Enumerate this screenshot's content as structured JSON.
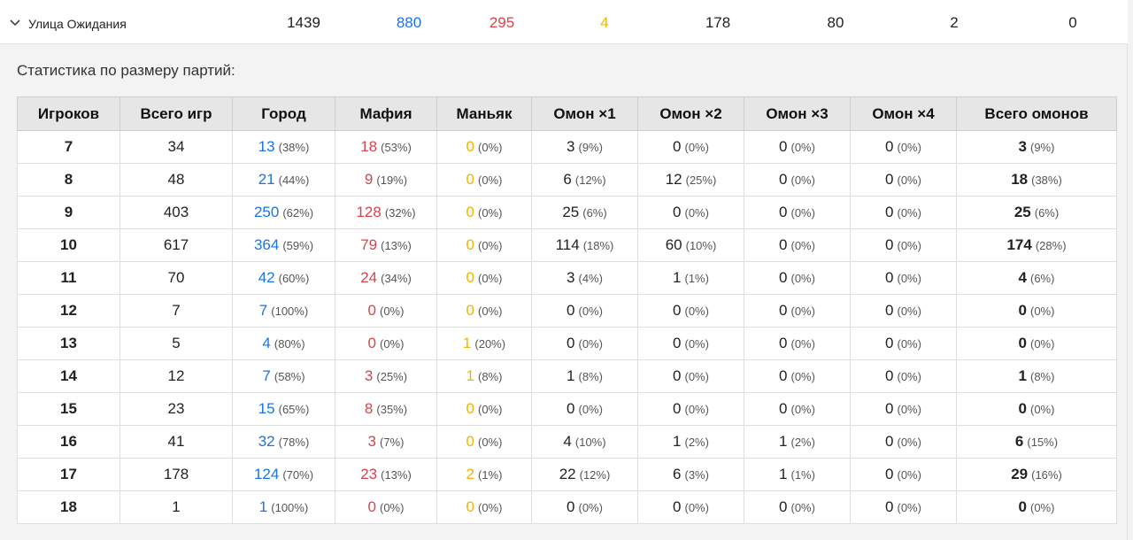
{
  "summary": {
    "name": "Улица Ожидания",
    "values": [
      "1439",
      "880",
      "295",
      "4",
      "178",
      "80",
      "2",
      "0"
    ]
  },
  "section_title": "Статистика по размеру партий:",
  "headers": [
    "Игроков",
    "Всего игр",
    "Город",
    "Мафия",
    "Маньяк",
    "Омон ×1",
    "Омон ×2",
    "Омон ×3",
    "Омон ×4",
    "Всего омонов"
  ],
  "rows": [
    {
      "players": "7",
      "total": "34",
      "city": [
        "13",
        "(38%)"
      ],
      "mafia": [
        "18",
        "(53%)"
      ],
      "maniac": [
        "0",
        "(0%)"
      ],
      "o1": [
        "3",
        "(9%)"
      ],
      "o2": [
        "0",
        "(0%)"
      ],
      "o3": [
        "0",
        "(0%)"
      ],
      "o4": [
        "0",
        "(0%)"
      ],
      "oall": [
        "3",
        "(9%)"
      ]
    },
    {
      "players": "8",
      "total": "48",
      "city": [
        "21",
        "(44%)"
      ],
      "mafia": [
        "9",
        "(19%)"
      ],
      "maniac": [
        "0",
        "(0%)"
      ],
      "o1": [
        "6",
        "(12%)"
      ],
      "o2": [
        "12",
        "(25%)"
      ],
      "o3": [
        "0",
        "(0%)"
      ],
      "o4": [
        "0",
        "(0%)"
      ],
      "oall": [
        "18",
        "(38%)"
      ]
    },
    {
      "players": "9",
      "total": "403",
      "city": [
        "250",
        "(62%)"
      ],
      "mafia": [
        "128",
        "(32%)"
      ],
      "maniac": [
        "0",
        "(0%)"
      ],
      "o1": [
        "25",
        "(6%)"
      ],
      "o2": [
        "0",
        "(0%)"
      ],
      "o3": [
        "0",
        "(0%)"
      ],
      "o4": [
        "0",
        "(0%)"
      ],
      "oall": [
        "25",
        "(6%)"
      ]
    },
    {
      "players": "10",
      "total": "617",
      "city": [
        "364",
        "(59%)"
      ],
      "mafia": [
        "79",
        "(13%)"
      ],
      "maniac": [
        "0",
        "(0%)"
      ],
      "o1": [
        "114",
        "(18%)"
      ],
      "o2": [
        "60",
        "(10%)"
      ],
      "o3": [
        "0",
        "(0%)"
      ],
      "o4": [
        "0",
        "(0%)"
      ],
      "oall": [
        "174",
        "(28%)"
      ]
    },
    {
      "players": "11",
      "total": "70",
      "city": [
        "42",
        "(60%)"
      ],
      "mafia": [
        "24",
        "(34%)"
      ],
      "maniac": [
        "0",
        "(0%)"
      ],
      "o1": [
        "3",
        "(4%)"
      ],
      "o2": [
        "1",
        "(1%)"
      ],
      "o3": [
        "0",
        "(0%)"
      ],
      "o4": [
        "0",
        "(0%)"
      ],
      "oall": [
        "4",
        "(6%)"
      ]
    },
    {
      "players": "12",
      "total": "7",
      "city": [
        "7",
        "(100%)"
      ],
      "mafia": [
        "0",
        "(0%)"
      ],
      "maniac": [
        "0",
        "(0%)"
      ],
      "o1": [
        "0",
        "(0%)"
      ],
      "o2": [
        "0",
        "(0%)"
      ],
      "o3": [
        "0",
        "(0%)"
      ],
      "o4": [
        "0",
        "(0%)"
      ],
      "oall": [
        "0",
        "(0%)"
      ]
    },
    {
      "players": "13",
      "total": "5",
      "city": [
        "4",
        "(80%)"
      ],
      "mafia": [
        "0",
        "(0%)"
      ],
      "maniac": [
        "1",
        "(20%)"
      ],
      "o1": [
        "0",
        "(0%)"
      ],
      "o2": [
        "0",
        "(0%)"
      ],
      "o3": [
        "0",
        "(0%)"
      ],
      "o4": [
        "0",
        "(0%)"
      ],
      "oall": [
        "0",
        "(0%)"
      ]
    },
    {
      "players": "14",
      "total": "12",
      "city": [
        "7",
        "(58%)"
      ],
      "mafia": [
        "3",
        "(25%)"
      ],
      "maniac": [
        "1",
        "(8%)"
      ],
      "o1": [
        "1",
        "(8%)"
      ],
      "o2": [
        "0",
        "(0%)"
      ],
      "o3": [
        "0",
        "(0%)"
      ],
      "o4": [
        "0",
        "(0%)"
      ],
      "oall": [
        "1",
        "(8%)"
      ]
    },
    {
      "players": "15",
      "total": "23",
      "city": [
        "15",
        "(65%)"
      ],
      "mafia": [
        "8",
        "(35%)"
      ],
      "maniac": [
        "0",
        "(0%)"
      ],
      "o1": [
        "0",
        "(0%)"
      ],
      "o2": [
        "0",
        "(0%)"
      ],
      "o3": [
        "0",
        "(0%)"
      ],
      "o4": [
        "0",
        "(0%)"
      ],
      "oall": [
        "0",
        "(0%)"
      ]
    },
    {
      "players": "16",
      "total": "41",
      "city": [
        "32",
        "(78%)"
      ],
      "mafia": [
        "3",
        "(7%)"
      ],
      "maniac": [
        "0",
        "(0%)"
      ],
      "o1": [
        "4",
        "(10%)"
      ],
      "o2": [
        "1",
        "(2%)"
      ],
      "o3": [
        "1",
        "(2%)"
      ],
      "o4": [
        "0",
        "(0%)"
      ],
      "oall": [
        "6",
        "(15%)"
      ]
    },
    {
      "players": "17",
      "total": "178",
      "city": [
        "124",
        "(70%)"
      ],
      "mafia": [
        "23",
        "(13%)"
      ],
      "maniac": [
        "2",
        "(1%)"
      ],
      "o1": [
        "22",
        "(12%)"
      ],
      "o2": [
        "6",
        "(3%)"
      ],
      "o3": [
        "1",
        "(1%)"
      ],
      "o4": [
        "0",
        "(0%)"
      ],
      "oall": [
        "29",
        "(16%)"
      ]
    },
    {
      "players": "18",
      "total": "1",
      "city": [
        "1",
        "(100%)"
      ],
      "mafia": [
        "0",
        "(0%)"
      ],
      "maniac": [
        "0",
        "(0%)"
      ],
      "o1": [
        "0",
        "(0%)"
      ],
      "o2": [
        "0",
        "(0%)"
      ],
      "o3": [
        "0",
        "(0%)"
      ],
      "o4": [
        "0",
        "(0%)"
      ],
      "oall": [
        "0",
        "(0%)"
      ]
    }
  ],
  "colors": {
    "city": "#1a73e8",
    "mafia": "#d9434b",
    "maniac": "#f0b400"
  },
  "icons": {
    "expand": "chevron-down-icon"
  }
}
